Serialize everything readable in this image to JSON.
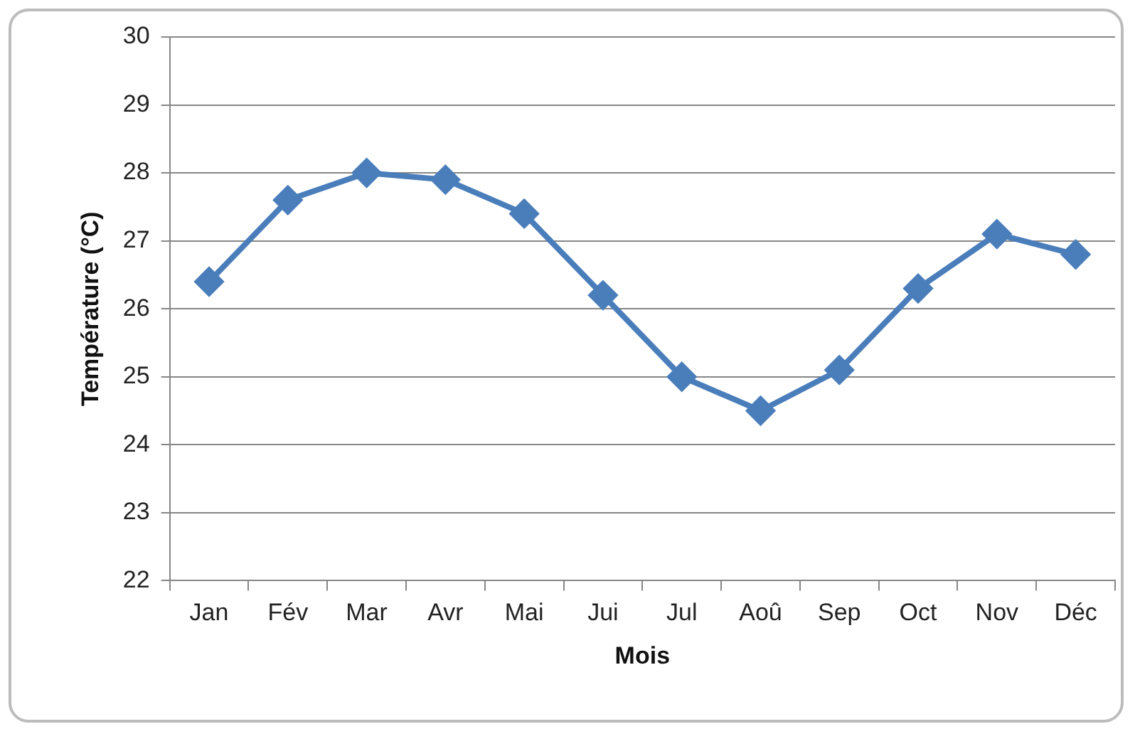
{
  "chart_data": {
    "type": "line",
    "xlabel": "Mois",
    "ylabel": "Température (°C)",
    "categories": [
      "Jan",
      "Fév",
      "Mar",
      "Avr",
      "Mai",
      "Jui",
      "Jul",
      "Aoû",
      "Sep",
      "Oct",
      "Nov",
      "Déc"
    ],
    "series": [
      {
        "color": "#4a7ebb",
        "values": [
          26.4,
          27.6,
          28.0,
          27.9,
          27.4,
          26.2,
          25.0,
          24.5,
          25.1,
          26.3,
          27.1,
          26.8
        ]
      }
    ],
    "ylim": [
      22,
      30
    ],
    "yticks": [
      22,
      23,
      24,
      25,
      26,
      27,
      28,
      29,
      30
    ],
    "grid": "y",
    "legend": false,
    "marker": "diamond",
    "line_style": "solid"
  }
}
